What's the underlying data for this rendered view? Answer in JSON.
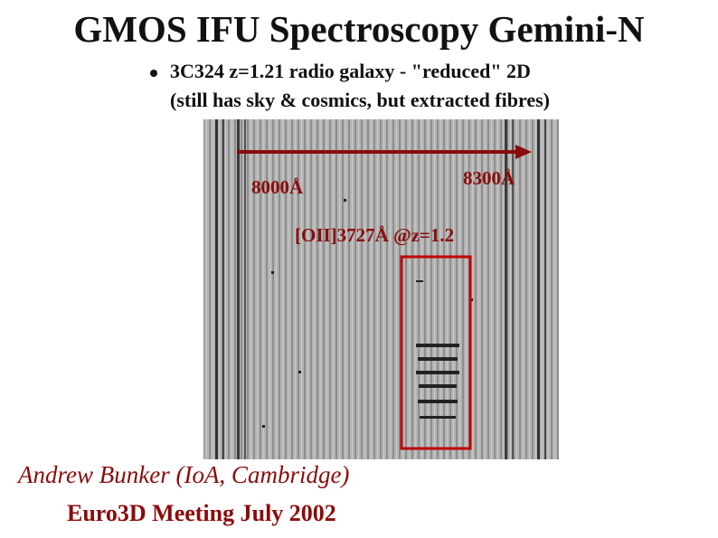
{
  "slide": {
    "title": "GMOS IFU Spectroscopy Gemini-N",
    "bullet": {
      "line1": "3C324 z=1.21 radio galaxy - \"reduced\" 2D",
      "line2": "(still has sky & cosmics, but extracted fibres)"
    },
    "image_labels": {
      "left_wavelength": "8000Å",
      "right_wavelength": "8300Å",
      "line_feature": "[OII]3727Å @z=1.2"
    },
    "footer": {
      "author": "Andrew Bunker (IoA, Cambridge)",
      "meeting": "Euro3D Meeting July 2002"
    }
  }
}
